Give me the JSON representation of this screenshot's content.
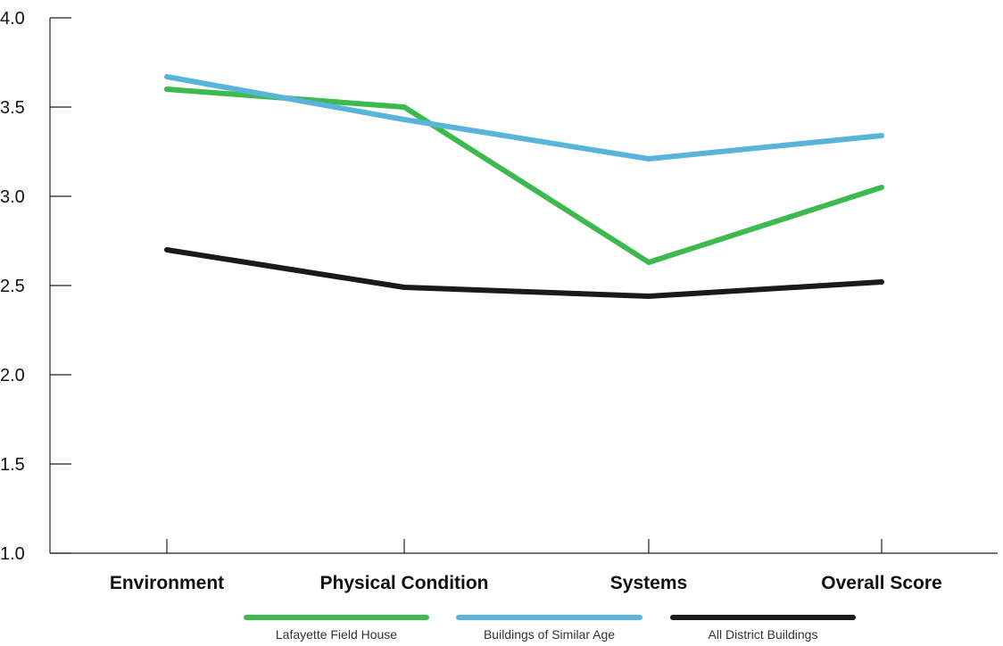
{
  "chart_data": {
    "type": "line",
    "categories": [
      "Environment",
      "Physical Condition",
      "Systems",
      "Overall Score"
    ],
    "series": [
      {
        "name": "Lafayette Field House",
        "color": "#3dba4e",
        "values": [
          3.6,
          3.5,
          2.63,
          3.05
        ]
      },
      {
        "name": "Buildings of Similar Age",
        "color": "#58b4d8",
        "values": [
          3.67,
          3.43,
          3.21,
          3.34
        ]
      },
      {
        "name": "All District Buildings",
        "color": "#1a1a1a",
        "values": [
          2.7,
          2.49,
          2.44,
          2.52
        ]
      }
    ],
    "ylim": [
      1.0,
      4.0
    ],
    "yticks": [
      "1.0",
      "1.5",
      "2.0",
      "2.5",
      "3.0",
      "3.5",
      "4.0"
    ],
    "title": "",
    "xlabel": "",
    "ylabel": "",
    "grid": false,
    "legend_position": "bottom-center"
  }
}
